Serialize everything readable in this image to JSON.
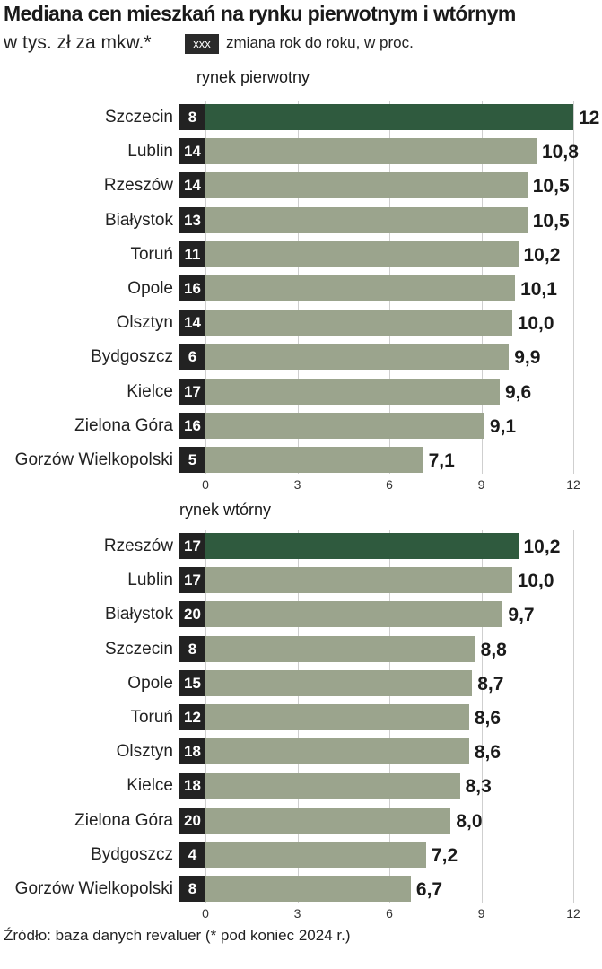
{
  "header": {
    "title": "Mediana cen mieszkań na rynku pierwotnym i wtórnym",
    "subtitle": "w tys. zł za mkw.*",
    "legend_box": "xxx",
    "legend_text": "zmiana rok do roku, w proc."
  },
  "source": "Źródło: baza danych revaluer (* pod koniec 2024 r.)",
  "colors": {
    "highlight": "#2f5a3e",
    "bar": "#9ba48d",
    "badge": "#222222"
  },
  "chart_data": [
    {
      "type": "bar",
      "orientation": "horizontal",
      "title": "rynek pierwotny",
      "categories": [
        "Szczecin",
        "Lublin",
        "Rzeszów",
        "Białystok",
        "Toruń",
        "Opole",
        "Olsztyn",
        "Bydgoszcz",
        "Kielce",
        "Zielona Góra",
        "Gorzów Wielkopolski"
      ],
      "values": [
        12,
        10.8,
        10.5,
        10.5,
        10.2,
        10.1,
        10.0,
        9.9,
        9.6,
        9.1,
        7.1
      ],
      "value_labels": [
        "12",
        "10,8",
        "10,5",
        "10,5",
        "10,2",
        "10,1",
        "10,0",
        "9,9",
        "9,6",
        "9,1",
        "7,1"
      ],
      "yoy_change": [
        "8",
        "14",
        "14",
        "13",
        "11",
        "16",
        "14",
        "6",
        "17",
        "16",
        "5"
      ],
      "highlight_index": 0,
      "xlim": [
        0,
        12
      ],
      "xticks": [
        "0",
        "3",
        "6",
        "9",
        "12"
      ]
    },
    {
      "type": "bar",
      "orientation": "horizontal",
      "title": "rynek wtórny",
      "categories": [
        "Rzeszów",
        "Lublin",
        "Białystok",
        "Szczecin",
        "Opole",
        "Toruń",
        "Olsztyn",
        "Kielce",
        "Zielona Góra",
        "Bydgoszcz",
        "Gorzów Wielkopolski"
      ],
      "values": [
        10.2,
        10.0,
        9.7,
        8.8,
        8.7,
        8.6,
        8.6,
        8.3,
        8.0,
        7.2,
        6.7
      ],
      "value_labels": [
        "10,2",
        "10,0",
        "9,7",
        "8,8",
        "8,7",
        "8,6",
        "8,6",
        "8,3",
        "8,0",
        "7,2",
        "6,7"
      ],
      "yoy_change": [
        "17",
        "17",
        "20",
        "8",
        "15",
        "12",
        "18",
        "18",
        "20",
        "4",
        "8"
      ],
      "highlight_index": 0,
      "xlim": [
        0,
        12
      ],
      "xticks": [
        "0",
        "3",
        "6",
        "9",
        "12"
      ]
    }
  ]
}
